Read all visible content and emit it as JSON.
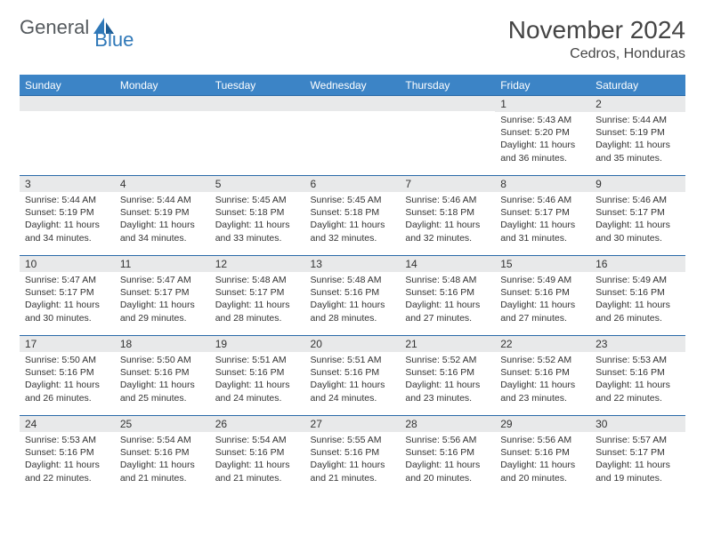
{
  "logo": {
    "word1": "General",
    "word2": "Blue",
    "icon_color": "#2f78b8"
  },
  "title": "November 2024",
  "location": "Cedros, Honduras",
  "colors": {
    "header_bg": "#3c84c6",
    "header_text": "#ffffff",
    "row_border": "#2a6aa8",
    "daynum_bg": "#e8e9ea",
    "text": "#333333",
    "background": "#ffffff"
  },
  "day_headers": [
    "Sunday",
    "Monday",
    "Tuesday",
    "Wednesday",
    "Thursday",
    "Friday",
    "Saturday"
  ],
  "weeks": [
    [
      {
        "day": "",
        "sunrise": "",
        "sunset": "",
        "daylight": ""
      },
      {
        "day": "",
        "sunrise": "",
        "sunset": "",
        "daylight": ""
      },
      {
        "day": "",
        "sunrise": "",
        "sunset": "",
        "daylight": ""
      },
      {
        "day": "",
        "sunrise": "",
        "sunset": "",
        "daylight": ""
      },
      {
        "day": "",
        "sunrise": "",
        "sunset": "",
        "daylight": ""
      },
      {
        "day": "1",
        "sunrise": "Sunrise: 5:43 AM",
        "sunset": "Sunset: 5:20 PM",
        "daylight": "Daylight: 11 hours and 36 minutes."
      },
      {
        "day": "2",
        "sunrise": "Sunrise: 5:44 AM",
        "sunset": "Sunset: 5:19 PM",
        "daylight": "Daylight: 11 hours and 35 minutes."
      }
    ],
    [
      {
        "day": "3",
        "sunrise": "Sunrise: 5:44 AM",
        "sunset": "Sunset: 5:19 PM",
        "daylight": "Daylight: 11 hours and 34 minutes."
      },
      {
        "day": "4",
        "sunrise": "Sunrise: 5:44 AM",
        "sunset": "Sunset: 5:19 PM",
        "daylight": "Daylight: 11 hours and 34 minutes."
      },
      {
        "day": "5",
        "sunrise": "Sunrise: 5:45 AM",
        "sunset": "Sunset: 5:18 PM",
        "daylight": "Daylight: 11 hours and 33 minutes."
      },
      {
        "day": "6",
        "sunrise": "Sunrise: 5:45 AM",
        "sunset": "Sunset: 5:18 PM",
        "daylight": "Daylight: 11 hours and 32 minutes."
      },
      {
        "day": "7",
        "sunrise": "Sunrise: 5:46 AM",
        "sunset": "Sunset: 5:18 PM",
        "daylight": "Daylight: 11 hours and 32 minutes."
      },
      {
        "day": "8",
        "sunrise": "Sunrise: 5:46 AM",
        "sunset": "Sunset: 5:17 PM",
        "daylight": "Daylight: 11 hours and 31 minutes."
      },
      {
        "day": "9",
        "sunrise": "Sunrise: 5:46 AM",
        "sunset": "Sunset: 5:17 PM",
        "daylight": "Daylight: 11 hours and 30 minutes."
      }
    ],
    [
      {
        "day": "10",
        "sunrise": "Sunrise: 5:47 AM",
        "sunset": "Sunset: 5:17 PM",
        "daylight": "Daylight: 11 hours and 30 minutes."
      },
      {
        "day": "11",
        "sunrise": "Sunrise: 5:47 AM",
        "sunset": "Sunset: 5:17 PM",
        "daylight": "Daylight: 11 hours and 29 minutes."
      },
      {
        "day": "12",
        "sunrise": "Sunrise: 5:48 AM",
        "sunset": "Sunset: 5:17 PM",
        "daylight": "Daylight: 11 hours and 28 minutes."
      },
      {
        "day": "13",
        "sunrise": "Sunrise: 5:48 AM",
        "sunset": "Sunset: 5:16 PM",
        "daylight": "Daylight: 11 hours and 28 minutes."
      },
      {
        "day": "14",
        "sunrise": "Sunrise: 5:48 AM",
        "sunset": "Sunset: 5:16 PM",
        "daylight": "Daylight: 11 hours and 27 minutes."
      },
      {
        "day": "15",
        "sunrise": "Sunrise: 5:49 AM",
        "sunset": "Sunset: 5:16 PM",
        "daylight": "Daylight: 11 hours and 27 minutes."
      },
      {
        "day": "16",
        "sunrise": "Sunrise: 5:49 AM",
        "sunset": "Sunset: 5:16 PM",
        "daylight": "Daylight: 11 hours and 26 minutes."
      }
    ],
    [
      {
        "day": "17",
        "sunrise": "Sunrise: 5:50 AM",
        "sunset": "Sunset: 5:16 PM",
        "daylight": "Daylight: 11 hours and 26 minutes."
      },
      {
        "day": "18",
        "sunrise": "Sunrise: 5:50 AM",
        "sunset": "Sunset: 5:16 PM",
        "daylight": "Daylight: 11 hours and 25 minutes."
      },
      {
        "day": "19",
        "sunrise": "Sunrise: 5:51 AM",
        "sunset": "Sunset: 5:16 PM",
        "daylight": "Daylight: 11 hours and 24 minutes."
      },
      {
        "day": "20",
        "sunrise": "Sunrise: 5:51 AM",
        "sunset": "Sunset: 5:16 PM",
        "daylight": "Daylight: 11 hours and 24 minutes."
      },
      {
        "day": "21",
        "sunrise": "Sunrise: 5:52 AM",
        "sunset": "Sunset: 5:16 PM",
        "daylight": "Daylight: 11 hours and 23 minutes."
      },
      {
        "day": "22",
        "sunrise": "Sunrise: 5:52 AM",
        "sunset": "Sunset: 5:16 PM",
        "daylight": "Daylight: 11 hours and 23 minutes."
      },
      {
        "day": "23",
        "sunrise": "Sunrise: 5:53 AM",
        "sunset": "Sunset: 5:16 PM",
        "daylight": "Daylight: 11 hours and 22 minutes."
      }
    ],
    [
      {
        "day": "24",
        "sunrise": "Sunrise: 5:53 AM",
        "sunset": "Sunset: 5:16 PM",
        "daylight": "Daylight: 11 hours and 22 minutes."
      },
      {
        "day": "25",
        "sunrise": "Sunrise: 5:54 AM",
        "sunset": "Sunset: 5:16 PM",
        "daylight": "Daylight: 11 hours and 21 minutes."
      },
      {
        "day": "26",
        "sunrise": "Sunrise: 5:54 AM",
        "sunset": "Sunset: 5:16 PM",
        "daylight": "Daylight: 11 hours and 21 minutes."
      },
      {
        "day": "27",
        "sunrise": "Sunrise: 5:55 AM",
        "sunset": "Sunset: 5:16 PM",
        "daylight": "Daylight: 11 hours and 21 minutes."
      },
      {
        "day": "28",
        "sunrise": "Sunrise: 5:56 AM",
        "sunset": "Sunset: 5:16 PM",
        "daylight": "Daylight: 11 hours and 20 minutes."
      },
      {
        "day": "29",
        "sunrise": "Sunrise: 5:56 AM",
        "sunset": "Sunset: 5:16 PM",
        "daylight": "Daylight: 11 hours and 20 minutes."
      },
      {
        "day": "30",
        "sunrise": "Sunrise: 5:57 AM",
        "sunset": "Sunset: 5:17 PM",
        "daylight": "Daylight: 11 hours and 19 minutes."
      }
    ]
  ]
}
